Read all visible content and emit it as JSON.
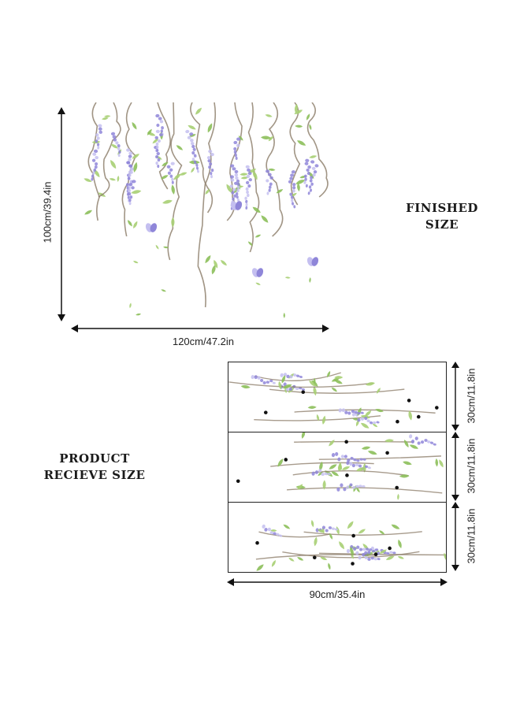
{
  "finished": {
    "label_line1": "FINISHED",
    "label_line2": "SIZE",
    "width": "120cm/47.2in",
    "height": "100cm/39.4in"
  },
  "product": {
    "label_line1": "PRODUCT",
    "label_line2": "RECIEVE SIZE",
    "width": "90cm/35.4in",
    "panel_heights": [
      "30cm/11.8in",
      "30cm/11.8in",
      "30cm/11.8in"
    ]
  },
  "colors": {
    "flower": "#8f86d9",
    "flower_light": "#c4bff0",
    "leaf": "#8cbf5a",
    "stem": "#8a7a66",
    "arrow": "#111111"
  }
}
